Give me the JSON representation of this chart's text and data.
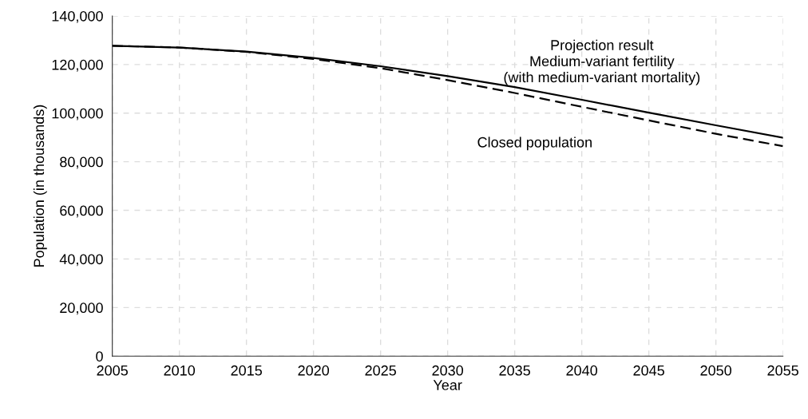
{
  "chart_data": {
    "type": "line",
    "xlabel": "Year",
    "ylabel": "Population (in thousands)",
    "x": [
      2005,
      2010,
      2015,
      2020,
      2025,
      2030,
      2035,
      2040,
      2045,
      2050,
      2055
    ],
    "series": [
      {
        "name": "Projection result\nMedium-variant fertility\n(with medium-variant mortality)",
        "color": "#000000",
        "line_style": "solid",
        "values": [
          127700,
          127000,
          125300,
          122700,
          119300,
          115200,
          110700,
          105500,
          100200,
          95000,
          89900
        ]
      },
      {
        "name": "Closed population",
        "color": "#000000",
        "line_style": "dashed",
        "values": [
          127700,
          127000,
          125200,
          122300,
          118500,
          113600,
          108300,
          102600,
          97000,
          91500,
          86400
        ]
      }
    ],
    "xlim": [
      2005,
      2055
    ],
    "xticks": [
      2005,
      2010,
      2015,
      2020,
      2025,
      2030,
      2035,
      2040,
      2045,
      2050,
      2055
    ],
    "ylim": [
      0,
      140000
    ],
    "yticks": [
      {
        "value": 0,
        "label": "0"
      },
      {
        "value": 20000,
        "label": "20,000"
      },
      {
        "value": 40000,
        "label": "40,000"
      },
      {
        "value": 60000,
        "label": "60,000"
      },
      {
        "value": 80000,
        "label": "80,000"
      },
      {
        "value": 100000,
        "label": "100,000"
      },
      {
        "value": 120000,
        "label": "120,000"
      },
      {
        "value": 140000,
        "label": "140,000"
      }
    ],
    "grid": true,
    "legend": false,
    "marker": "none"
  }
}
